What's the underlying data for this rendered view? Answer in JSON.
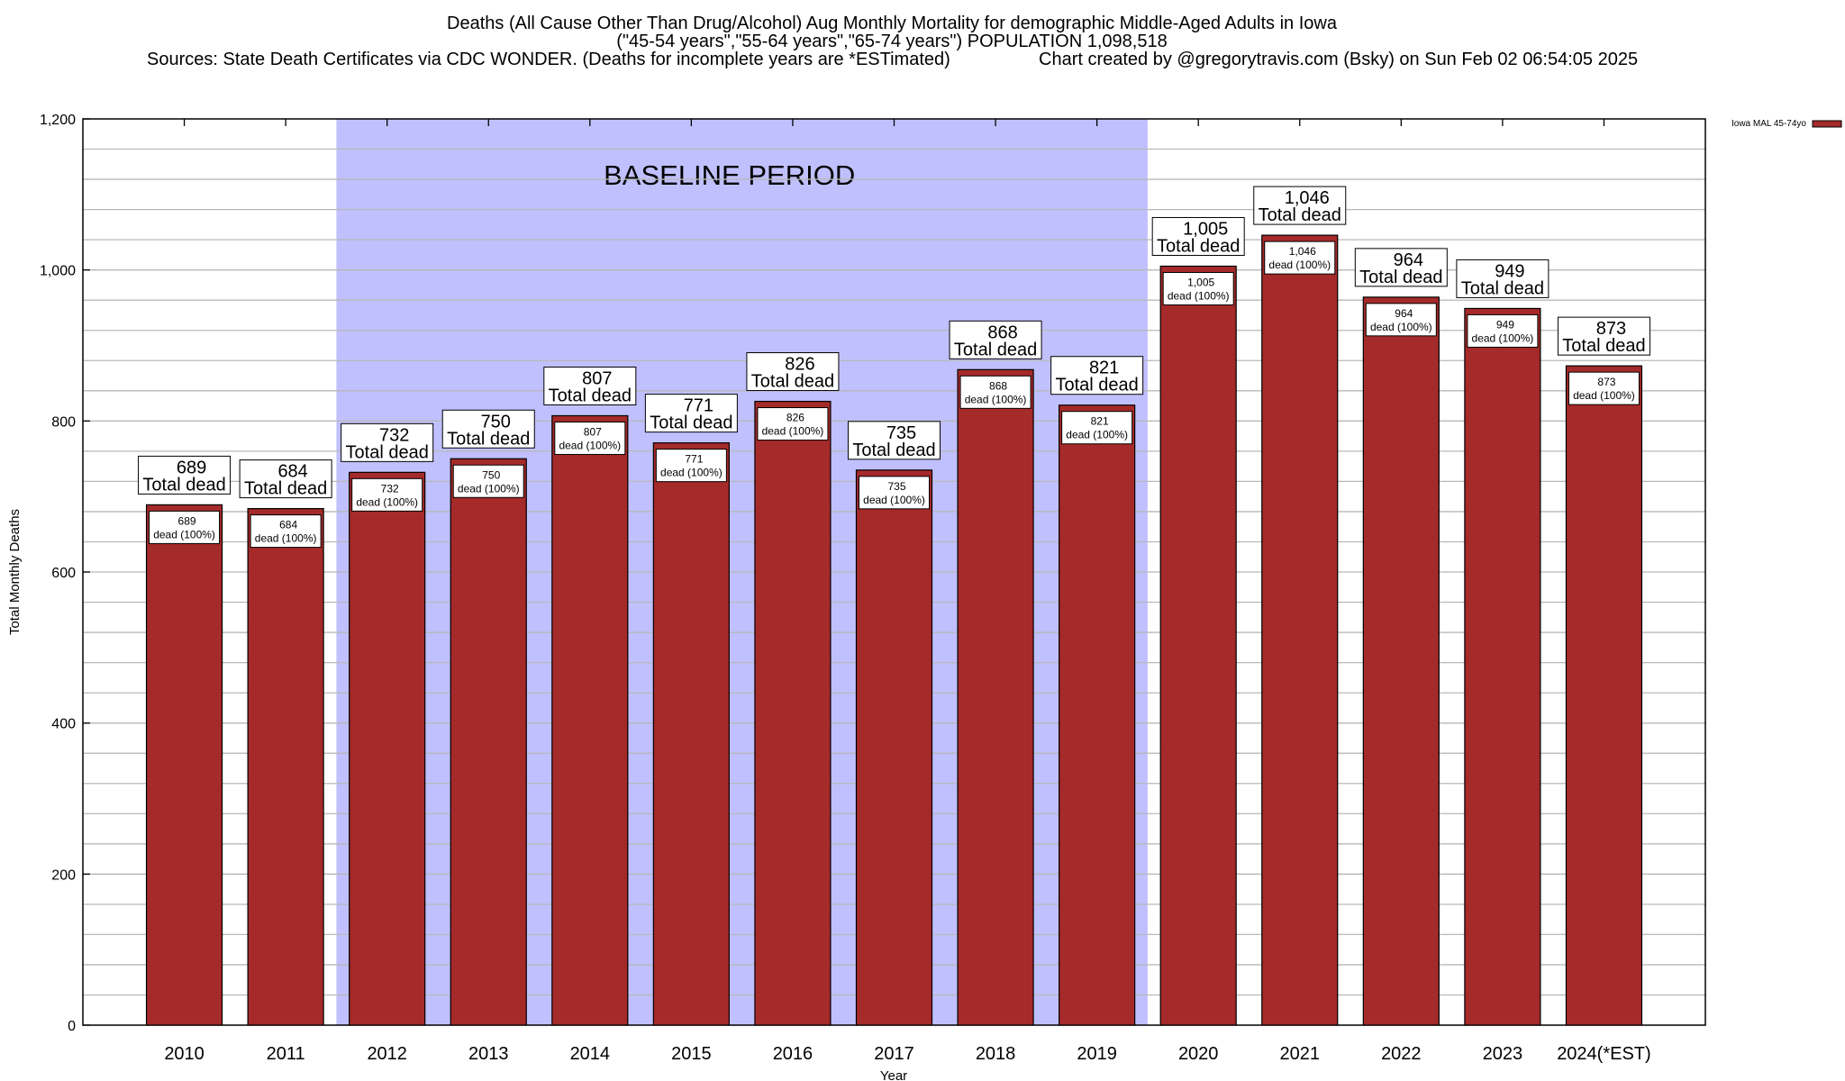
{
  "chart_data": {
    "type": "bar",
    "title_lines": [
      "Deaths (All Cause Other Than Drug/Alcohol) Aug Monthly Mortality for demographic Middle-Aged Adults in Iowa",
      "(\"45-54 years\",\"55-64 years\",\"65-74 years\") POPULATION 1,098,518"
    ],
    "sources": "Sources: State Death Certificates via CDC WONDER. (Deaths for incomplete years are *ESTimated)",
    "credit": "Chart created by @gregorytravis.com (Bsky) on Sun Feb 02 06:54:05 2025",
    "xlabel": "Year",
    "ylabel": "Total Monthly Deaths",
    "ylim": [
      0,
      1200
    ],
    "yticks": [
      0,
      200,
      400,
      600,
      800,
      1000,
      1200
    ],
    "ytick_labels": [
      "0",
      "200",
      "400",
      "600",
      "800",
      "1,000",
      "1,200"
    ],
    "grid": true,
    "categories": [
      "2010",
      "2011",
      "2012",
      "2013",
      "2014",
      "2015",
      "2016",
      "2017",
      "2018",
      "2019",
      "2020",
      "2021",
      "2022",
      "2023",
      "2024(*EST)"
    ],
    "series": [
      {
        "name": "Iowa MAL 45-74yo",
        "color": "#a52a2a",
        "values": [
          689,
          684,
          732,
          750,
          807,
          771,
          826,
          735,
          868,
          821,
          1005,
          1046,
          964,
          949,
          873
        ]
      }
    ],
    "value_labels": [
      "689",
      "684",
      "732",
      "750",
      "807",
      "771",
      "826",
      "735",
      "868",
      "821",
      "1,005",
      "1,046",
      "964",
      "949",
      "873"
    ],
    "total_label": "Total dead",
    "inner_label": "dead (100%)",
    "legend_position": "top-right",
    "annotation": {
      "text": "BASELINE PERIOD",
      "from_category": "2012",
      "to_category": "2019",
      "color": "#c0c0ff"
    }
  }
}
